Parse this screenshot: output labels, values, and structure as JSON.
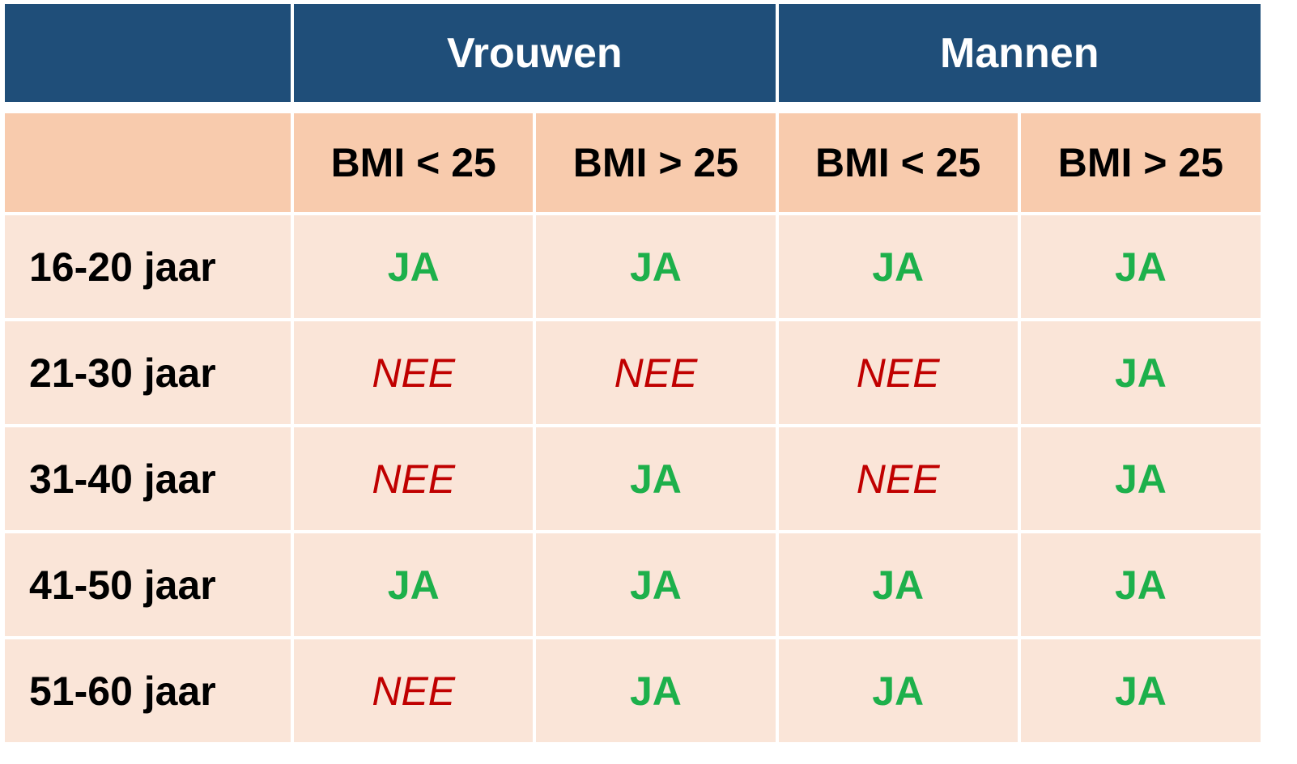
{
  "header": {
    "groups": [
      "Vrouwen",
      "Mannen"
    ],
    "columns": [
      "BMI < 25",
      "BMI > 25",
      "BMI < 25",
      "BMI > 25"
    ]
  },
  "rows": [
    {
      "label": "16-20 jaar",
      "values": [
        "JA",
        "JA",
        "JA",
        "JA"
      ]
    },
    {
      "label": "21-30 jaar",
      "values": [
        "NEE",
        "NEE",
        "NEE",
        "JA"
      ]
    },
    {
      "label": "31-40 jaar",
      "values": [
        "NEE",
        "JA",
        "NEE",
        "JA"
      ]
    },
    {
      "label": "41-50 jaar",
      "values": [
        "JA",
        "JA",
        "JA",
        "JA"
      ]
    },
    {
      "label": "51-60 jaar",
      "values": [
        "NEE",
        "JA",
        "JA",
        "JA"
      ]
    }
  ],
  "colors": {
    "header_bg": "#1f4e79",
    "subheader_bg": "#f8cbad",
    "body_bg": "#fae5d8",
    "ja": "#1db04b",
    "nee": "#c00000"
  }
}
